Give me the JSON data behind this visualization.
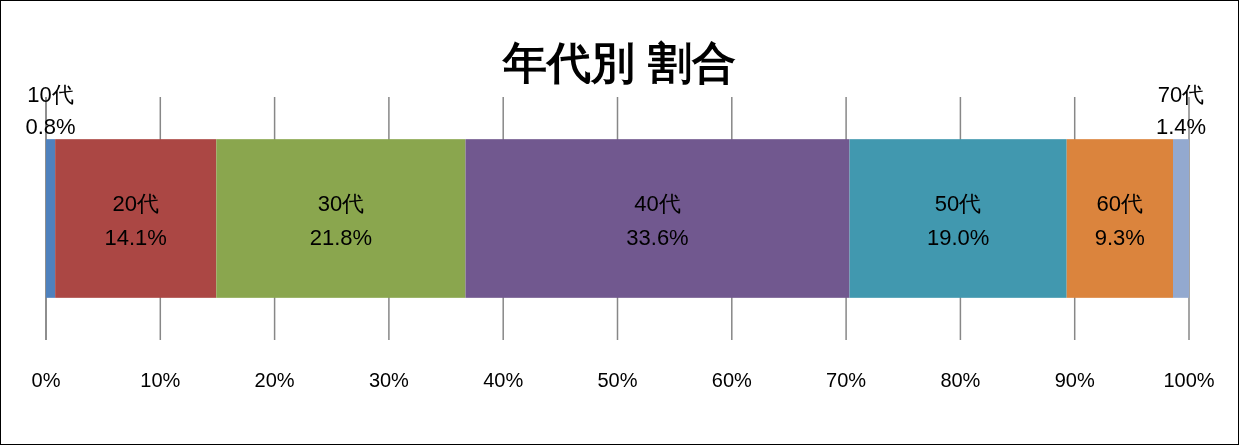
{
  "chart_data": {
    "type": "bar",
    "title": "年代別 割合",
    "orientation": "horizontal",
    "stacked": true,
    "categories": [
      null
    ],
    "series": [
      {
        "name": "10代",
        "color": "#4f81bd",
        "values": [
          0.8
        ],
        "value_labels": [
          "0.8%"
        ]
      },
      {
        "name": "20代",
        "color": "#ab4744",
        "values": [
          14.1
        ],
        "value_labels": [
          "14.1%"
        ]
      },
      {
        "name": "30代",
        "color": "#8aa64e",
        "values": [
          21.8
        ],
        "value_labels": [
          "21.8%"
        ]
      },
      {
        "name": "40代",
        "color": "#71588f",
        "values": [
          33.6
        ],
        "value_labels": [
          "33.6%"
        ]
      },
      {
        "name": "50代",
        "color": "#4198af",
        "values": [
          19.0
        ],
        "value_labels": [
          "19.0%"
        ]
      },
      {
        "name": "60代",
        "color": "#db843d",
        "values": [
          9.3
        ],
        "value_labels": [
          "9.3%"
        ]
      },
      {
        "name": "70代",
        "color": "#93a9cf",
        "values": [
          1.4
        ],
        "value_labels": [
          "1.4%"
        ]
      }
    ],
    "xlim": [
      0,
      100
    ],
    "xticks": [
      {
        "value": 0,
        "label": "0%"
      },
      {
        "value": 10,
        "label": "10%"
      },
      {
        "value": 20,
        "label": "20%"
      },
      {
        "value": 30,
        "label": "30%"
      },
      {
        "value": 40,
        "label": "40%"
      },
      {
        "value": 50,
        "label": "50%"
      },
      {
        "value": 60,
        "label": "60%"
      },
      {
        "value": 70,
        "label": "70%"
      },
      {
        "value": 80,
        "label": "80%"
      },
      {
        "value": 90,
        "label": "90%"
      },
      {
        "value": 100,
        "label": "100%"
      }
    ],
    "grid": "x"
  }
}
